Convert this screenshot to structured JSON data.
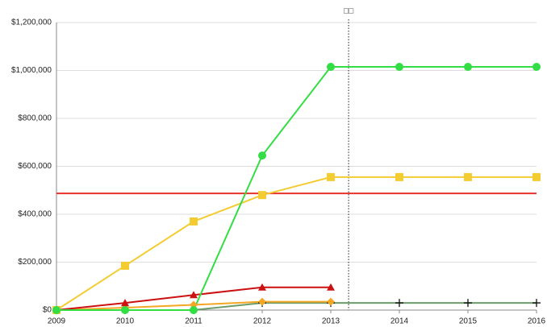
{
  "chart_data": {
    "type": "line",
    "x": [
      2009,
      2010,
      2011,
      2012,
      2013,
      2014,
      2015,
      2016
    ],
    "xlim": [
      2009,
      2016
    ],
    "xticks": [
      2009,
      2010,
      2011,
      2012,
      2013,
      2014,
      2015,
      2016
    ],
    "ylim": [
      0,
      1200000
    ],
    "yticks": [
      {
        "value": 0,
        "label": "$0"
      },
      {
        "value": 200000,
        "label": "$200,000"
      },
      {
        "value": 400000,
        "label": "$400,000"
      },
      {
        "value": 600000,
        "label": "$600,000"
      },
      {
        "value": 800000,
        "label": "$800,000"
      },
      {
        "value": 1000000,
        "label": "$1,000,000"
      },
      {
        "value": 1200000,
        "label": "$1,200,000"
      }
    ],
    "grid": true,
    "series": [
      {
        "color": "#6a9c6a",
        "marker": "plus",
        "marker_color": "#111111",
        "values": [
          0,
          0,
          0,
          30000,
          30000,
          30000,
          30000,
          30000
        ]
      },
      {
        "color": "#f5a623",
        "marker": "diamond",
        "values": [
          0,
          10000,
          22000,
          35000,
          35000,
          null,
          null,
          null
        ]
      },
      {
        "color": "#cc1111",
        "marker": "triangle",
        "values": [
          0,
          30000,
          63000,
          95000,
          95000,
          null,
          null,
          null
        ]
      },
      {
        "color": "#f2cc30",
        "marker": "square",
        "values": [
          0,
          185000,
          370000,
          480000,
          555000,
          555000,
          555000,
          555000
        ]
      },
      {
        "color": "#33dd44",
        "marker": "circle",
        "values": [
          0,
          0,
          0,
          645000,
          1015000,
          1015000,
          1015000,
          1015000
        ]
      }
    ],
    "hlines": [
      {
        "value": 487000,
        "color": "#e8322e"
      }
    ],
    "vlines": [
      {
        "value": 2013.26,
        "label": "□□",
        "color": "#222222"
      }
    ]
  }
}
